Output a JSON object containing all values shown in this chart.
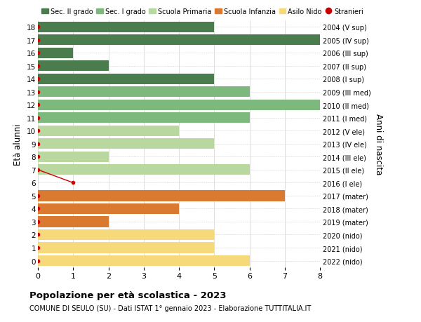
{
  "ages": [
    18,
    17,
    16,
    15,
    14,
    13,
    12,
    11,
    10,
    9,
    8,
    7,
    6,
    5,
    4,
    3,
    2,
    1,
    0
  ],
  "anni": [
    "2004 (V sup)",
    "2005 (IV sup)",
    "2006 (III sup)",
    "2007 (II sup)",
    "2008 (I sup)",
    "2009 (III med)",
    "2010 (II med)",
    "2011 (I med)",
    "2012 (V ele)",
    "2013 (IV ele)",
    "2014 (III ele)",
    "2015 (II ele)",
    "2016 (I ele)",
    "2017 (mater)",
    "2018 (mater)",
    "2019 (mater)",
    "2020 (nido)",
    "2021 (nido)",
    "2022 (nido)"
  ],
  "values": [
    5,
    8,
    1,
    2,
    5,
    6,
    8,
    6,
    4,
    5,
    2,
    6,
    0,
    7,
    4,
    2,
    5,
    5,
    6
  ],
  "colors": [
    "#4a7c4e",
    "#4a7c4e",
    "#4a7c4e",
    "#4a7c4e",
    "#4a7c4e",
    "#7db87d",
    "#7db87d",
    "#7db87d",
    "#b8d8a0",
    "#b8d8a0",
    "#b8d8a0",
    "#b8d8a0",
    "#b8d8a0",
    "#d97a30",
    "#d97a30",
    "#d97a30",
    "#f5d97a",
    "#f5d97a",
    "#f5d97a"
  ],
  "stranieri_ages_dot": [
    18,
    17,
    16,
    15,
    14,
    13,
    12,
    11,
    10,
    9,
    8,
    7,
    5,
    4,
    3,
    2,
    1,
    0
  ],
  "stranieri_highlight_age": 6,
  "stranieri_highlight_x": 1,
  "stranieri_line_from": [
    0,
    7
  ],
  "stranieri_line_to": [
    1,
    6
  ],
  "color_sec2": "#4a7c4e",
  "color_sec1": "#7db87d",
  "color_primaria": "#b8d8a0",
  "color_infanzia": "#d97a30",
  "color_nido": "#f5d97a",
  "color_stranieri": "#cc0000",
  "title_main": "Popolazione per età scolastica - 2023",
  "title_sub": "COMUNE DI SEULO (SU) - Dati ISTAT 1° gennaio 2023 - Elaborazione TUTTITALIA.IT",
  "ylabel_left": "Età alunni",
  "ylabel_right": "Anni di nascita",
  "xlim": [
    0,
    8
  ],
  "ylim": [
    -0.5,
    18.5
  ],
  "bg_color": "#ffffff",
  "grid_color": "#d0d0d0",
  "bar_height": 0.82
}
